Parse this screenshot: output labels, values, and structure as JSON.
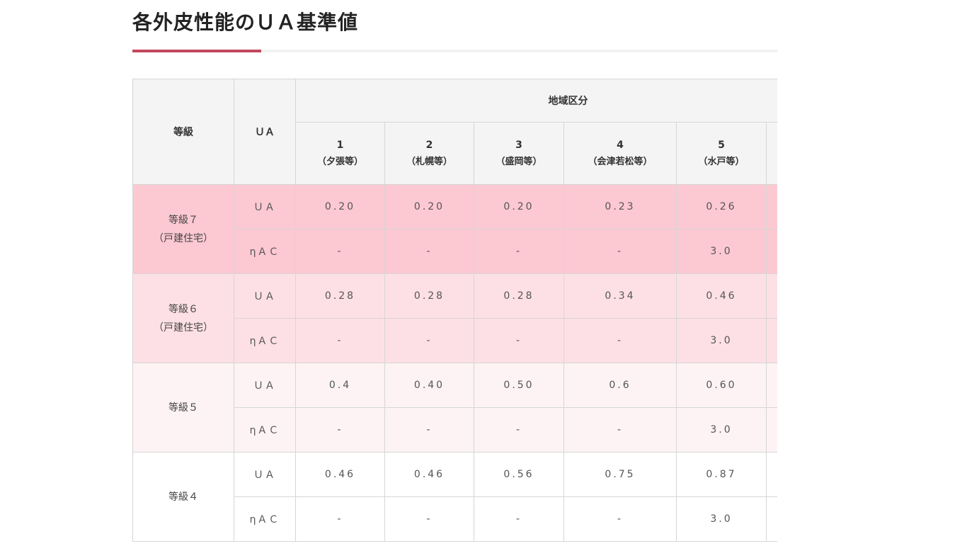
{
  "page": {
    "title": "各外皮性能のＵＡ基準値"
  },
  "table": {
    "header": {
      "grade": "等級",
      "ua": "ＵＡ",
      "region_group": "地域区分",
      "regions": [
        {
          "num": "1",
          "city": "（夕張等）"
        },
        {
          "num": "2",
          "city": "（札幌等）"
        },
        {
          "num": "3",
          "city": "（盛岡等）"
        },
        {
          "num": "4",
          "city": "（会津若松等）"
        },
        {
          "num": "5",
          "city": "（水戸等）"
        }
      ]
    },
    "grades": [
      {
        "name_line1": "等級７",
        "name_line2": "（戸建住宅）",
        "rows": [
          {
            "metric": "ＵＡ",
            "values": [
              "0.20",
              "0.20",
              "0.20",
              "0.23",
              "0.26"
            ]
          },
          {
            "metric": "ηＡＣ",
            "values": [
              "-",
              "-",
              "-",
              "-",
              "3.0"
            ]
          }
        ]
      },
      {
        "name_line1": "等級６",
        "name_line2": "（戸建住宅）",
        "rows": [
          {
            "metric": "ＵＡ",
            "values": [
              "0.28",
              "0.28",
              "0.28",
              "0.34",
              "0.46"
            ]
          },
          {
            "metric": "ηＡＣ",
            "values": [
              "-",
              "-",
              "-",
              "-",
              "3.0"
            ]
          }
        ]
      },
      {
        "name_line1": "等級５",
        "name_line2": "",
        "rows": [
          {
            "metric": "ＵＡ",
            "values": [
              "0.4",
              "0.40",
              "0.50",
              "0.6",
              "0.60"
            ]
          },
          {
            "metric": "ηＡＣ",
            "values": [
              "-",
              "-",
              "-",
              "-",
              "3.0"
            ]
          }
        ]
      },
      {
        "name_line1": "等級４",
        "name_line2": "",
        "rows": [
          {
            "metric": "ＵＡ",
            "values": [
              "0.46",
              "0.46",
              "0.56",
              "0.75",
              "0.87"
            ]
          },
          {
            "metric": "ηＡＣ",
            "values": [
              "-",
              "-",
              "-",
              "-",
              "3.0"
            ]
          }
        ]
      }
    ]
  },
  "colors": {
    "accent": "#c4485e",
    "grade7_bg": "#fcc8d2",
    "grade6_bg": "#fde0e5",
    "grade5_bg": "#fdf3f4",
    "grade4_bg": "#ffffff",
    "header_bg": "#f4f4f4"
  }
}
